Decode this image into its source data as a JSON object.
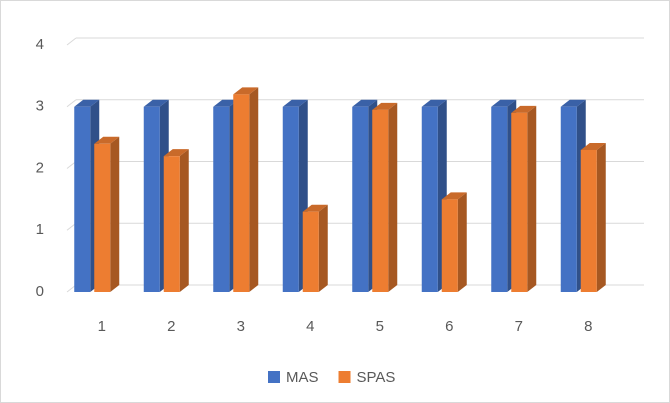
{
  "chart_data": {
    "type": "bar3d",
    "categories": [
      "1",
      "2",
      "3",
      "4",
      "5",
      "6",
      "7",
      "8"
    ],
    "series": [
      {
        "name": "MAS",
        "color": "#4472c4",
        "values": [
          3,
          3,
          3,
          3,
          3,
          3,
          3,
          3
        ]
      },
      {
        "name": "SPAS",
        "color": "#ed7d31",
        "values": [
          2.4,
          2.2,
          3.2,
          1.3,
          2.95,
          1.5,
          2.9,
          2.3
        ]
      }
    ],
    "ylim": [
      0,
      4
    ],
    "yticks": [
      0,
      1,
      2,
      3,
      4
    ],
    "grid": true,
    "legend": "bottom"
  }
}
